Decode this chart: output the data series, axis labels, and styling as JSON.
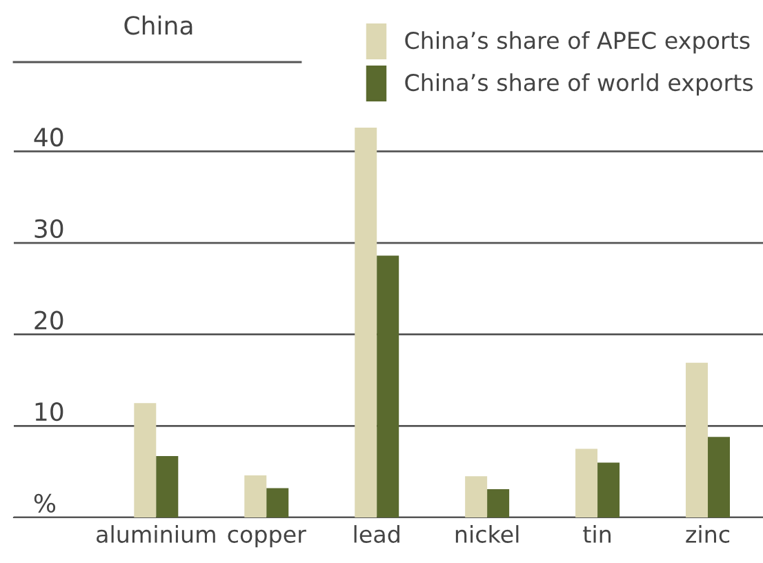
{
  "chart_data": {
    "type": "bar",
    "annotations": [
      "China"
    ],
    "categories": [
      "aluminium",
      "copper",
      "lead",
      "nickel",
      "tin",
      "zinc"
    ],
    "series": [
      {
        "name": "China’s share of APEC exports",
        "color": "#ddd8b3",
        "values": [
          12.5,
          4.6,
          42.6,
          4.5,
          7.5,
          16.9
        ]
      },
      {
        "name": "China’s share of world exports",
        "color": "#5a6a2e",
        "values": [
          6.7,
          3.2,
          28.6,
          3.1,
          6.0,
          8.8
        ]
      }
    ],
    "ylim": [
      0,
      49
    ],
    "yticks": [
      {
        "value": 0,
        "label": "%"
      },
      10,
      20,
      30,
      40
    ],
    "grid": "y",
    "legend": "top right"
  }
}
